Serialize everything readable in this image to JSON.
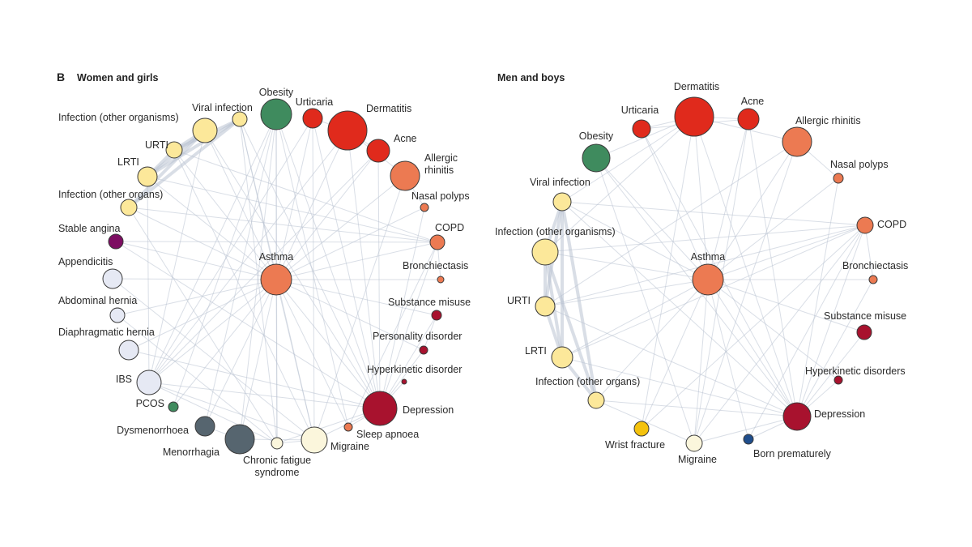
{
  "panels": [
    {
      "letter": "B",
      "title": "Women and girls",
      "nodes": [
        {
          "id": "obesity",
          "label": "Obesity",
          "color": "#3f8b5e"
        },
        {
          "id": "urticaria",
          "label": "Urticaria",
          "color": "#e02a1c"
        },
        {
          "id": "dermatitis",
          "label": "Dermatitis",
          "color": "#e02a1c"
        },
        {
          "id": "acne",
          "label": "Acne",
          "color": "#e02a1c"
        },
        {
          "id": "allergic",
          "label": [
            "Allergic",
            "rhinitis"
          ],
          "color": "#ec7a52"
        },
        {
          "id": "nasal",
          "label": "Nasal polyps",
          "color": "#ec7a52"
        },
        {
          "id": "copd",
          "label": "COPD",
          "color": "#ec7a52"
        },
        {
          "id": "bronch",
          "label": "Bronchiectasis",
          "color": "#ec7a52"
        },
        {
          "id": "substance",
          "label": "Substance misuse",
          "color": "#a8122e"
        },
        {
          "id": "personality",
          "label": "Personality disorder",
          "color": "#a8122e"
        },
        {
          "id": "hyperkinetic",
          "label": "Hyperkinetic disorder",
          "color": "#a8122e"
        },
        {
          "id": "depression",
          "label": "Depression",
          "color": "#a8122e"
        },
        {
          "id": "sleep",
          "label": "Sleep apnoea",
          "color": "#ec7a52"
        },
        {
          "id": "migraine",
          "label": "Migraine",
          "color": "#fbf6dc"
        },
        {
          "id": "cfs",
          "label": [
            "Chronic fatigue",
            "syndrome"
          ],
          "color": "#fbf6dc"
        },
        {
          "id": "menorrhagia",
          "label": "Menorrhagia",
          "color": "#56656f"
        },
        {
          "id": "dysmen",
          "label": "Dysmenorrhoea",
          "color": "#56656f"
        },
        {
          "id": "pcos",
          "label": "PCOS",
          "color": "#3f8b5e"
        },
        {
          "id": "ibs",
          "label": "IBS",
          "color": "#e6e9f4"
        },
        {
          "id": "diaphr",
          "label": "Diaphragmatic hernia",
          "color": "#e6e9f4"
        },
        {
          "id": "abdom",
          "label": "Abdominal hernia",
          "color": "#e6e9f4"
        },
        {
          "id": "append",
          "label": "Appendicitis",
          "color": "#e6e9f4"
        },
        {
          "id": "angina",
          "label": "Stable angina",
          "color": "#7d0e62"
        },
        {
          "id": "inforgans",
          "label": "Infection (other organs)",
          "color": "#fce89a"
        },
        {
          "id": "lrti",
          "label": "LRTI",
          "color": "#fce89a"
        },
        {
          "id": "urti",
          "label": "URTI",
          "color": "#fce89a"
        },
        {
          "id": "inforgs",
          "label": "Infection (other organisms)",
          "color": "#fce89a"
        },
        {
          "id": "viral",
          "label": "Viral infection",
          "color": "#fce89a"
        },
        {
          "id": "asthma",
          "label": "Asthma",
          "color": "#ec7a52"
        }
      ],
      "edges": [
        [
          "asthma",
          "obesity"
        ],
        [
          "asthma",
          "urticaria"
        ],
        [
          "asthma",
          "dermatitis"
        ],
        [
          "asthma",
          "acne"
        ],
        [
          "asthma",
          "allergic"
        ],
        [
          "asthma",
          "nasal"
        ],
        [
          "asthma",
          "copd"
        ],
        [
          "asthma",
          "bronch"
        ],
        [
          "asthma",
          "depression"
        ],
        [
          "asthma",
          "migraine"
        ],
        [
          "asthma",
          "cfs"
        ],
        [
          "asthma",
          "menorrhagia"
        ],
        [
          "asthma",
          "dysmen"
        ],
        [
          "asthma",
          "ibs"
        ],
        [
          "asthma",
          "diaphr"
        ],
        [
          "asthma",
          "abdom"
        ],
        [
          "asthma",
          "append"
        ],
        [
          "asthma",
          "inforgans"
        ],
        [
          "asthma",
          "lrti"
        ],
        [
          "asthma",
          "urti"
        ],
        [
          "asthma",
          "viral"
        ],
        [
          "asthma",
          "inforgs"
        ],
        [
          "asthma",
          "sleep"
        ],
        [
          "asthma",
          "substance"
        ],
        [
          "asthma",
          "personality"
        ],
        [
          "asthma",
          "angina"
        ],
        [
          "asthma",
          "pcos"
        ],
        [
          "lrti",
          "copd"
        ],
        [
          "inforgans",
          "copd"
        ],
        [
          "angina",
          "copd"
        ],
        [
          "allergic",
          "nasal"
        ],
        [
          "dermatitis",
          "urticaria"
        ],
        [
          "dermatitis",
          "acne"
        ],
        [
          "dermatitis",
          "allergic"
        ],
        [
          "obesity",
          "depression"
        ],
        [
          "obesity",
          "menorrhagia"
        ],
        [
          "obesity",
          "cfs"
        ],
        [
          "obesity",
          "ibs"
        ],
        [
          "urticaria",
          "depression"
        ],
        [
          "urticaria",
          "ibs"
        ],
        [
          "viral",
          "migraine"
        ],
        [
          "viral",
          "cfs"
        ],
        [
          "viral",
          "depression"
        ],
        [
          "urti",
          "copd"
        ],
        [
          "inforgs",
          "depression"
        ],
        [
          "inforgs",
          "ibs"
        ],
        [
          "ibs",
          "depression"
        ],
        [
          "ibs",
          "migraine"
        ],
        [
          "ibs",
          "cfs"
        ],
        [
          "dysmen",
          "menorrhagia"
        ],
        [
          "cfs",
          "depression"
        ],
        [
          "migraine",
          "depression"
        ],
        [
          "sleep",
          "depression"
        ],
        [
          "obesity",
          "sleep"
        ],
        [
          "abdom",
          "cfs"
        ],
        [
          "diaphr",
          "depression"
        ],
        [
          "append",
          "migraine"
        ],
        [
          "personality",
          "substance"
        ],
        [
          "hyperkinetic",
          "depression"
        ],
        [
          "dermatitis",
          "ibs"
        ],
        [
          "acne",
          "depression"
        ],
        [
          "allergic",
          "migraine"
        ],
        [
          "nasal",
          "depression"
        ],
        [
          "copd",
          "depression"
        ],
        [
          "bronch",
          "copd"
        ],
        [
          "copd",
          "sleep"
        ],
        [
          "lrti",
          "ibs"
        ],
        [
          "inforgans",
          "cfs"
        ],
        [
          "urti",
          "migraine"
        ],
        [
          "obesity",
          "dysmen"
        ],
        [
          "pcos",
          "obesity"
        ],
        [
          "dermatitis",
          "depression"
        ],
        [
          "urticaria",
          "migraine"
        ],
        [
          "acne",
          "ibs"
        ],
        [
          "personality",
          "depression"
        ],
        [
          "substance",
          "depression"
        ],
        [
          "angina",
          "depression"
        ],
        [
          "menorrhagia",
          "migraine"
        ],
        [
          "cfs",
          "migraine"
        ]
      ],
      "thick_edges": [
        [
          "lrti",
          "viral"
        ],
        [
          "lrti",
          "inforgs"
        ],
        [
          "urti",
          "viral"
        ],
        [
          "inforgans",
          "viral"
        ],
        [
          "inforgans",
          "inforgs"
        ],
        [
          "urti",
          "inforgs"
        ],
        [
          "lrti",
          "urti"
        ]
      ]
    },
    {
      "letter": "",
      "title": "Men and boys",
      "nodes": [
        {
          "id": "obesity",
          "label": "Obesity",
          "color": "#3f8b5e"
        },
        {
          "id": "urticaria",
          "label": "Urticaria",
          "color": "#e02a1c"
        },
        {
          "id": "dermatitis",
          "label": "Dermatitis",
          "color": "#e02a1c"
        },
        {
          "id": "acne",
          "label": "Acne",
          "color": "#e02a1c"
        },
        {
          "id": "allergic",
          "label": "Allergic rhinitis",
          "color": "#ec7a52"
        },
        {
          "id": "nasal",
          "label": "Nasal polyps",
          "color": "#ec7a52"
        },
        {
          "id": "copd",
          "label": "COPD",
          "color": "#ec7a52"
        },
        {
          "id": "bronch",
          "label": "Bronchiectasis",
          "color": "#ec7a52"
        },
        {
          "id": "substance",
          "label": "Substance misuse",
          "color": "#a8122e"
        },
        {
          "id": "hyperkinetic",
          "label": "Hyperkinetic disorders",
          "color": "#a8122e"
        },
        {
          "id": "depression",
          "label": "Depression",
          "color": "#a8122e"
        },
        {
          "id": "born",
          "label": "Born prematurely",
          "color": "#1f4e8c"
        },
        {
          "id": "migraine",
          "label": "Migraine",
          "color": "#fbf6dc"
        },
        {
          "id": "wrist",
          "label": "Wrist fracture",
          "color": "#f4c20d"
        },
        {
          "id": "inforgans",
          "label": "Infection (other organs)",
          "color": "#fce89a"
        },
        {
          "id": "lrti",
          "label": "LRTI",
          "color": "#fce89a"
        },
        {
          "id": "urti",
          "label": "URTI",
          "color": "#fce89a"
        },
        {
          "id": "inforgs",
          "label": "Infection (other organisms)",
          "color": "#fce89a"
        },
        {
          "id": "viral",
          "label": "Viral infection",
          "color": "#fce89a"
        },
        {
          "id": "asthma",
          "label": "Asthma",
          "color": "#ec7a52"
        }
      ],
      "edges": [
        [
          "asthma",
          "obesity"
        ],
        [
          "asthma",
          "urticaria"
        ],
        [
          "asthma",
          "dermatitis"
        ],
        [
          "asthma",
          "acne"
        ],
        [
          "asthma",
          "allergic"
        ],
        [
          "asthma",
          "nasal"
        ],
        [
          "asthma",
          "copd"
        ],
        [
          "asthma",
          "bronch"
        ],
        [
          "asthma",
          "substance"
        ],
        [
          "asthma",
          "hyperkinetic"
        ],
        [
          "asthma",
          "depression"
        ],
        [
          "asthma",
          "born"
        ],
        [
          "asthma",
          "migraine"
        ],
        [
          "asthma",
          "wrist"
        ],
        [
          "asthma",
          "inforgans"
        ],
        [
          "asthma",
          "lrti"
        ],
        [
          "asthma",
          "urti"
        ],
        [
          "asthma",
          "inforgs"
        ],
        [
          "asthma",
          "viral"
        ],
        [
          "inforgs",
          "copd"
        ],
        [
          "lrti",
          "copd"
        ],
        [
          "urti",
          "copd"
        ],
        [
          "viral",
          "copd"
        ],
        [
          "dermatitis",
          "urticaria"
        ],
        [
          "dermatitis",
          "acne"
        ],
        [
          "dermatitis",
          "allergic"
        ],
        [
          "dermatitis",
          "depression"
        ],
        [
          "urticaria",
          "depression"
        ],
        [
          "obesity",
          "depression"
        ],
        [
          "obesity",
          "migraine"
        ],
        [
          "acne",
          "depression"
        ],
        [
          "acne",
          "migraine"
        ],
        [
          "allergic",
          "migraine"
        ],
        [
          "nasal",
          "depression"
        ],
        [
          "copd",
          "depression"
        ],
        [
          "bronch",
          "depression"
        ],
        [
          "substance",
          "depression"
        ],
        [
          "hyperkinetic",
          "depression"
        ],
        [
          "born",
          "copd"
        ],
        [
          "born",
          "depression"
        ],
        [
          "wrist",
          "copd"
        ],
        [
          "wrist",
          "dermatitis"
        ],
        [
          "migraine",
          "depression"
        ],
        [
          "urti",
          "depression"
        ],
        [
          "inforgans",
          "depression"
        ],
        [
          "lrti",
          "depression"
        ],
        [
          "viral",
          "depression"
        ],
        [
          "inforgans",
          "migraine"
        ],
        [
          "urti",
          "allergic"
        ],
        [
          "inforgs",
          "dermatitis"
        ],
        [
          "viral",
          "dermatitis"
        ],
        [
          "copd",
          "migraine"
        ],
        [
          "bronch",
          "copd"
        ],
        [
          "allergic",
          "nasal"
        ],
        [
          "obesity",
          "dermatitis"
        ],
        [
          "urticaria",
          "acne"
        ]
      ],
      "thick_edges": [
        [
          "viral",
          "inforgs"
        ],
        [
          "viral",
          "urti"
        ],
        [
          "viral",
          "lrti"
        ],
        [
          "viral",
          "inforgans"
        ],
        [
          "inforgs",
          "urti"
        ],
        [
          "inforgs",
          "lrti"
        ],
        [
          "urti",
          "lrti"
        ],
        [
          "inforgs",
          "inforgans"
        ],
        [
          "lrti",
          "inforgans"
        ]
      ]
    }
  ]
}
